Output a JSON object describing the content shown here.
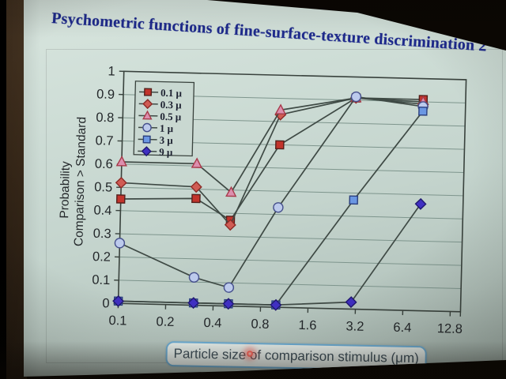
{
  "slide": {
    "title": "Psychometric functions of fine-surface-texture discrimination 2",
    "title_color": "#1e2a8c"
  },
  "chart_data": {
    "type": "line",
    "xlabel": "Particle size of comparison stimulus (μm)",
    "ylabel_line1": "Probability",
    "ylabel_line2": "Comparison > Standard",
    "x_scale": "log2",
    "x": [
      0.1,
      0.3,
      0.5,
      1,
      3,
      8
    ],
    "x_ticks": [
      0.1,
      0.2,
      0.4,
      0.8,
      1.6,
      3.2,
      6.4,
      12.8
    ],
    "x_tick_labels": [
      "0.1",
      "0.2",
      "0.4",
      "0.8",
      "1.6",
      "3.2",
      "6.4",
      "12.8"
    ],
    "ylim": [
      0,
      1
    ],
    "y_ticks": [
      "1",
      "0.9",
      "0.8",
      "0.7",
      "0.6",
      "0.5",
      "0.4",
      "0.3",
      "0.2",
      "0.1",
      "0"
    ],
    "grid": "horizontal",
    "legend_position": "inside-top-left",
    "colors": {
      "grid": "#7e958d",
      "axis": "#39423d",
      "text": "#24282b",
      "line": "#3f4a45",
      "legend_bg": "#c9d8d1",
      "legend_text": "#1c2030",
      "laser_dot": "#ff5a50",
      "caption_border": "#6fb0d8"
    },
    "series": [
      {
        "name": "0.1 μ",
        "marker": "square",
        "fill": "#c2342c",
        "stroke": "#55201c",
        "values": [
          0.45,
          0.46,
          0.37,
          0.7,
          0.91,
          0.91
        ]
      },
      {
        "name": "0.3 μ",
        "marker": "diamond",
        "fill": "#d05c54",
        "stroke": "#8c2a26",
        "values": [
          0.52,
          0.51,
          0.35,
          0.83,
          0.91,
          0.89
        ]
      },
      {
        "name": "0.5 μ",
        "marker": "triangle",
        "fill": "#dc8fae",
        "stroke": "#a83a4a",
        "values": [
          0.61,
          0.61,
          0.49,
          0.85,
          0.91,
          0.9
        ]
      },
      {
        "name": "1 μ",
        "marker": "circle",
        "fill": "#bccaec",
        "stroke": "#46508c",
        "values": [
          0.26,
          0.12,
          0.08,
          0.43,
          0.915,
          0.88
        ]
      },
      {
        "name": "3 μ",
        "marker": "square",
        "fill": "#6b97e3",
        "stroke": "#2b3f7e",
        "values": [
          0.01,
          0.01,
          0.01,
          0.01,
          0.47,
          0.86
        ]
      },
      {
        "name": "9 μ",
        "marker": "diamond",
        "fill": "#4030c2",
        "stroke": "#201870",
        "values": [
          0.01,
          0.01,
          0.01,
          0.01,
          0.03,
          0.46
        ]
      }
    ]
  }
}
